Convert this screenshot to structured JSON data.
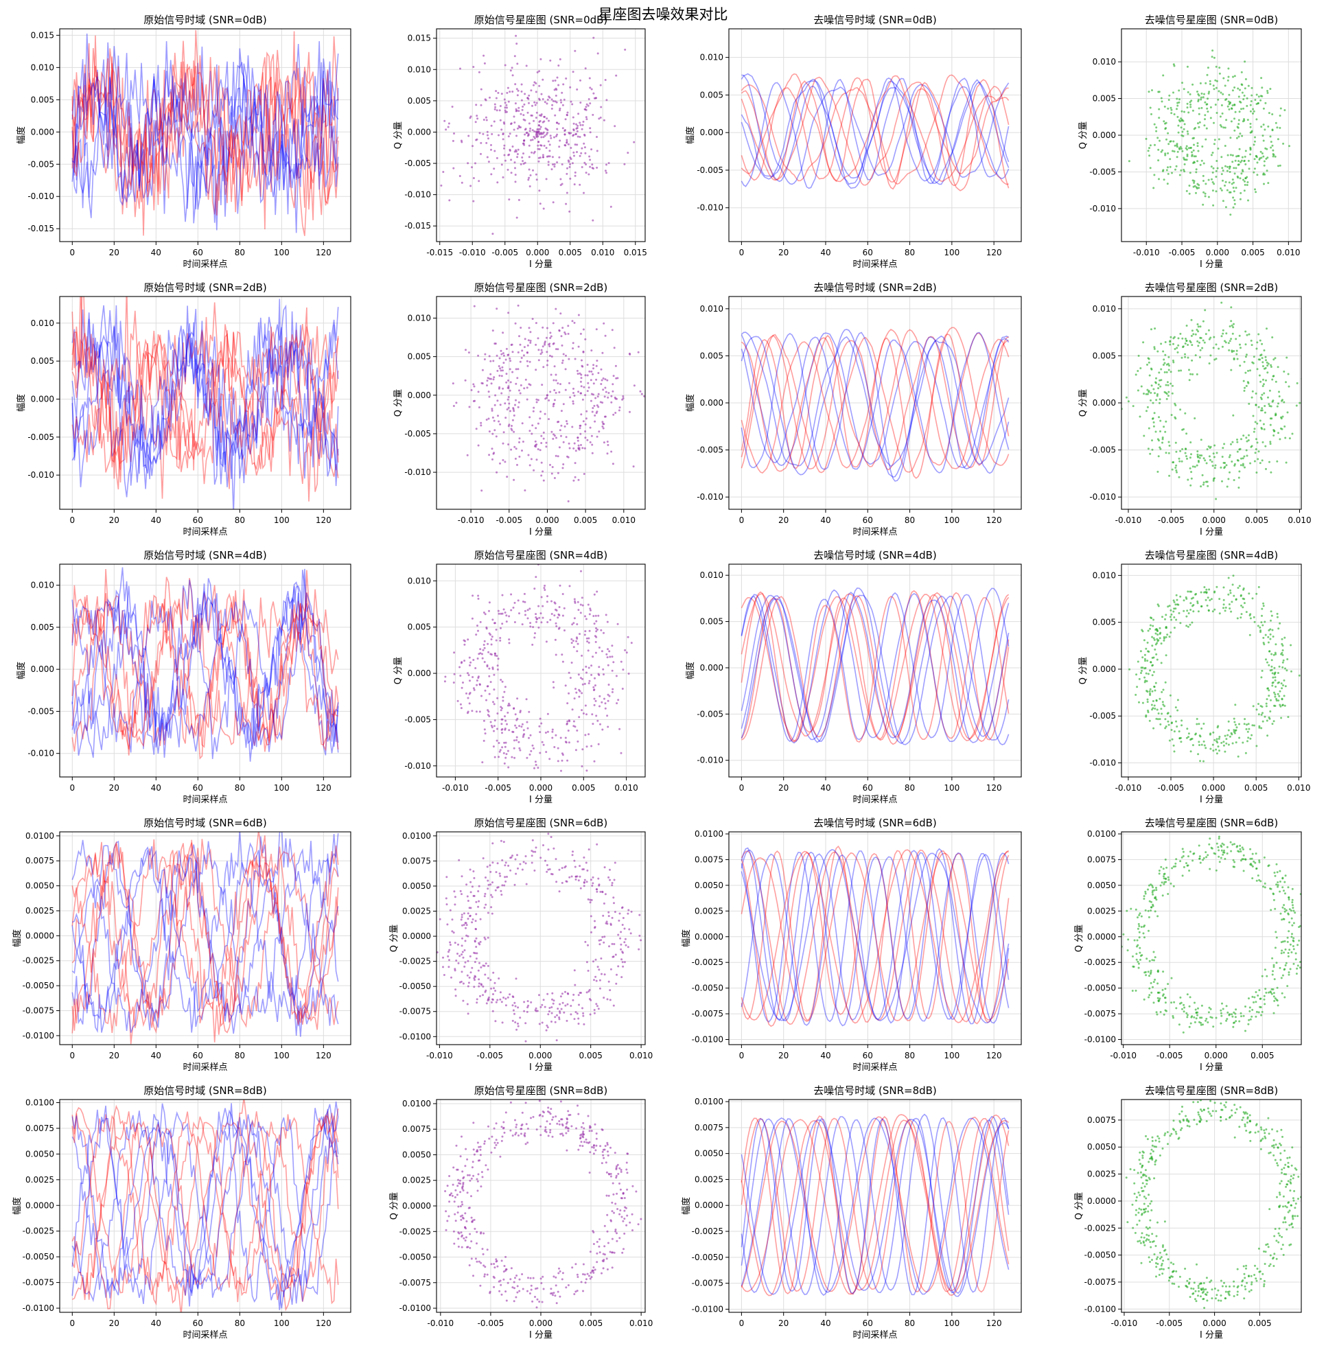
{
  "figure": {
    "suptitle": "星座图去噪效果对比",
    "colors": {
      "red_trace": "#ff0000",
      "blue_trace": "#0000ff",
      "raw_scatter": "#9933aa",
      "denoised_scatter": "#22aa22",
      "grid": "#dddddd"
    }
  },
  "chart_data": [
    {
      "type": "line",
      "title": "原始信号时域 (SNR=0dB)",
      "xlabel": "时间采样点",
      "ylabel": "幅度",
      "xlim": [
        -6,
        133
      ],
      "ylim": [
        -0.017,
        0.016
      ],
      "xticks": [
        0,
        20,
        40,
        60,
        80,
        100,
        120
      ],
      "yticks": [
        -0.015,
        -0.01,
        -0.005,
        0.0,
        0.005,
        0.01,
        0.015
      ],
      "ytick_decimals": 3,
      "grid": true,
      "kind": "time",
      "snr_db": 0,
      "denoised": false,
      "amplitude": 0.0065,
      "noise": 0.004,
      "series_colors": [
        "red",
        "blue"
      ],
      "n_traces": 10,
      "n_samples": 128
    },
    {
      "type": "scatter",
      "title": "原始信号星座图 (SNR=0dB)",
      "xlabel": "I 分量",
      "ylabel": "Q 分量",
      "xlim": [
        -0.0155,
        0.0165
      ],
      "ylim": [
        -0.0175,
        0.0165
      ],
      "xticks": [
        -0.015,
        -0.01,
        -0.005,
        0.0,
        0.005,
        0.01,
        0.015
      ],
      "yticks": [
        -0.015,
        -0.01,
        -0.005,
        0.0,
        0.005,
        0.01,
        0.015
      ],
      "ytick_decimals": 3,
      "grid": true,
      "kind": "constellation",
      "snr_db": 0,
      "denoised": false,
      "radius": 0.0065,
      "noise": 0.004,
      "n_points": 500
    },
    {
      "type": "line",
      "title": "去噪信号时域 (SNR=0dB)",
      "xlabel": "时间采样点",
      "ylabel": "幅度",
      "xlim": [
        -6,
        133
      ],
      "ylim": [
        -0.0145,
        0.0138
      ],
      "xticks": [
        0,
        20,
        40,
        60,
        80,
        100,
        120
      ],
      "yticks": [
        -0.01,
        -0.005,
        0.0,
        0.005,
        0.01
      ],
      "ytick_decimals": 3,
      "grid": true,
      "kind": "time",
      "snr_db": 0,
      "denoised": true,
      "amplitude": 0.0065,
      "noise": 0.0018,
      "series_colors": [
        "red",
        "blue"
      ],
      "n_traces": 10,
      "n_samples": 128
    },
    {
      "type": "scatter",
      "title": "去噪信号星座图 (SNR=0dB)",
      "xlabel": "I 分量",
      "ylabel": "Q 分量",
      "xlim": [
        -0.0135,
        0.0118
      ],
      "ylim": [
        -0.0145,
        0.0145
      ],
      "xticks": [
        -0.01,
        -0.005,
        0.0,
        0.005,
        0.01
      ],
      "yticks": [
        -0.01,
        -0.005,
        0.0,
        0.005,
        0.01
      ],
      "ytick_decimals": 3,
      "grid": true,
      "kind": "constellation",
      "snr_db": 0,
      "denoised": true,
      "radius": 0.0065,
      "noise": 0.0022,
      "n_points": 500
    },
    {
      "type": "line",
      "title": "原始信号时域 (SNR=2dB)",
      "xlabel": "时间采样点",
      "ylabel": "幅度",
      "xlim": [
        -6,
        133
      ],
      "ylim": [
        -0.0145,
        0.0135
      ],
      "xticks": [
        0,
        20,
        40,
        60,
        80,
        100,
        120
      ],
      "yticks": [
        -0.01,
        -0.005,
        0.0,
        0.005,
        0.01
      ],
      "ytick_decimals": 3,
      "grid": true,
      "kind": "time",
      "snr_db": 2,
      "denoised": false,
      "amplitude": 0.007,
      "noise": 0.0028,
      "series_colors": [
        "red",
        "blue"
      ],
      "n_traces": 10,
      "n_samples": 128
    },
    {
      "type": "scatter",
      "title": "原始信号星座图 (SNR=2dB)",
      "xlabel": "I 分量",
      "ylabel": "Q 分量",
      "xlim": [
        -0.0145,
        0.0128
      ],
      "ylim": [
        -0.0148,
        0.0128
      ],
      "xticks": [
        -0.01,
        -0.005,
        0.0,
        0.005,
        0.01
      ],
      "yticks": [
        -0.01,
        -0.005,
        0.0,
        0.005,
        0.01
      ],
      "ytick_decimals": 3,
      "grid": true,
      "kind": "constellation",
      "snr_db": 2,
      "denoised": false,
      "radius": 0.007,
      "noise": 0.0028,
      "n_points": 500
    },
    {
      "type": "line",
      "title": "去噪信号时域 (SNR=2dB)",
      "xlabel": "时间采样点",
      "ylabel": "幅度",
      "xlim": [
        -6,
        133
      ],
      "ylim": [
        -0.0113,
        0.0113
      ],
      "xticks": [
        0,
        20,
        40,
        60,
        80,
        100,
        120
      ],
      "yticks": [
        -0.01,
        -0.005,
        0.0,
        0.005,
        0.01
      ],
      "ytick_decimals": 3,
      "grid": true,
      "kind": "time",
      "snr_db": 2,
      "denoised": true,
      "amplitude": 0.007,
      "noise": 0.0012,
      "series_colors": [
        "red",
        "blue"
      ],
      "n_traces": 10,
      "n_samples": 128
    },
    {
      "type": "scatter",
      "title": "去噪信号星座图 (SNR=2dB)",
      "xlabel": "I 分量",
      "ylabel": "Q 分量",
      "xlim": [
        -0.0108,
        0.0102
      ],
      "ylim": [
        -0.0113,
        0.0113
      ],
      "xticks": [
        -0.01,
        -0.005,
        0.0,
        0.005,
        0.01
      ],
      "yticks": [
        -0.01,
        -0.005,
        0.0,
        0.005,
        0.01
      ],
      "ytick_decimals": 3,
      "grid": true,
      "kind": "constellation",
      "snr_db": 2,
      "denoised": true,
      "radius": 0.007,
      "noise": 0.0015,
      "n_points": 500
    },
    {
      "type": "line",
      "title": "原始信号时域 (SNR=4dB)",
      "xlabel": "时间采样点",
      "ylabel": "幅度",
      "xlim": [
        -6,
        133
      ],
      "ylim": [
        -0.0128,
        0.0125
      ],
      "xticks": [
        0,
        20,
        40,
        60,
        80,
        100,
        120
      ],
      "yticks": [
        -0.01,
        -0.005,
        0.0,
        0.005,
        0.01
      ],
      "ytick_decimals": 3,
      "grid": true,
      "kind": "time",
      "snr_db": 4,
      "denoised": false,
      "amplitude": 0.0075,
      "noise": 0.0018,
      "series_colors": [
        "red",
        "blue"
      ],
      "n_traces": 10,
      "n_samples": 128
    },
    {
      "type": "scatter",
      "title": "原始信号星座图 (SNR=4dB)",
      "xlabel": "I 分量",
      "ylabel": "Q 分量",
      "xlim": [
        -0.0122,
        0.0122
      ],
      "ylim": [
        -0.0112,
        0.0118
      ],
      "xticks": [
        -0.01,
        -0.005,
        0.0,
        0.005,
        0.01
      ],
      "yticks": [
        -0.01,
        -0.005,
        0.0,
        0.005,
        0.01
      ],
      "ytick_decimals": 3,
      "grid": true,
      "kind": "constellation",
      "snr_db": 4,
      "denoised": false,
      "radius": 0.0075,
      "noise": 0.0018,
      "n_points": 500
    },
    {
      "type": "line",
      "title": "去噪信号时域 (SNR=4dB)",
      "xlabel": "时间采样点",
      "ylabel": "幅度",
      "xlim": [
        -6,
        133
      ],
      "ylim": [
        -0.0118,
        0.0112
      ],
      "xticks": [
        0,
        20,
        40,
        60,
        80,
        100,
        120
      ],
      "yticks": [
        -0.01,
        -0.005,
        0.0,
        0.005,
        0.01
      ],
      "ytick_decimals": 3,
      "grid": true,
      "kind": "time",
      "snr_db": 4,
      "denoised": true,
      "amplitude": 0.0078,
      "noise": 0.0008,
      "series_colors": [
        "red",
        "blue"
      ],
      "n_traces": 10,
      "n_samples": 128
    },
    {
      "type": "scatter",
      "title": "去噪信号星座图 (SNR=4dB)",
      "xlabel": "I 分量",
      "ylabel": "Q 分量",
      "xlim": [
        -0.0108,
        0.0103
      ],
      "ylim": [
        -0.0115,
        0.0112
      ],
      "xticks": [
        -0.01,
        -0.005,
        0.0,
        0.005,
        0.01
      ],
      "yticks": [
        -0.01,
        -0.005,
        0.0,
        0.005,
        0.01
      ],
      "ytick_decimals": 3,
      "grid": true,
      "kind": "constellation",
      "snr_db": 4,
      "denoised": true,
      "radius": 0.0078,
      "noise": 0.001,
      "n_points": 500
    },
    {
      "type": "line",
      "title": "原始信号时域 (SNR=6dB)",
      "xlabel": "时间采样点",
      "ylabel": "幅度",
      "xlim": [
        -6,
        133
      ],
      "ylim": [
        -0.0109,
        0.0104
      ],
      "xticks": [
        0,
        20,
        40,
        60,
        80,
        100,
        120
      ],
      "yticks": [
        -0.01,
        -0.0075,
        -0.005,
        -0.0025,
        0.0,
        0.0025,
        0.005,
        0.0075,
        0.01
      ],
      "ytick_decimals": 4,
      "grid": true,
      "kind": "time",
      "snr_db": 6,
      "denoised": false,
      "amplitude": 0.0078,
      "noise": 0.0012,
      "series_colors": [
        "red",
        "blue"
      ],
      "n_traces": 10,
      "n_samples": 128
    },
    {
      "type": "scatter",
      "title": "原始信号星座图 (SNR=6dB)",
      "xlabel": "I 分量",
      "ylabel": "Q 分量",
      "xlim": [
        -0.0103,
        0.0104
      ],
      "ylim": [
        -0.0108,
        0.0104
      ],
      "xticks": [
        -0.01,
        -0.005,
        0.0,
        0.005,
        0.01
      ],
      "yticks": [
        -0.01,
        -0.0075,
        -0.005,
        -0.0025,
        0.0,
        0.0025,
        0.005,
        0.0075,
        0.01
      ],
      "ytick_decimals": 4,
      "grid": true,
      "kind": "constellation",
      "snr_db": 6,
      "denoised": false,
      "radius": 0.0078,
      "noise": 0.0012,
      "n_points": 500
    },
    {
      "type": "line",
      "title": "去噪信号时域 (SNR=6dB)",
      "xlabel": "时间采样点",
      "ylabel": "幅度",
      "xlim": [
        -6,
        133
      ],
      "ylim": [
        -0.0105,
        0.0102
      ],
      "xticks": [
        0,
        20,
        40,
        60,
        80,
        100,
        120
      ],
      "yticks": [
        -0.01,
        -0.0075,
        -0.005,
        -0.0025,
        0.0,
        0.0025,
        0.005,
        0.0075,
        0.01
      ],
      "ytick_decimals": 4,
      "grid": true,
      "kind": "time",
      "snr_db": 6,
      "denoised": true,
      "amplitude": 0.0082,
      "noise": 0.0006,
      "series_colors": [
        "red",
        "blue"
      ],
      "n_traces": 10,
      "n_samples": 128
    },
    {
      "type": "scatter",
      "title": "去噪信号星座图 (SNR=6dB)",
      "xlabel": "I 分量",
      "ylabel": "Q 分量",
      "xlim": [
        -0.0102,
        0.0092
      ],
      "ylim": [
        -0.0105,
        0.0102
      ],
      "xticks": [
        -0.01,
        -0.005,
        0.0,
        0.005
      ],
      "yticks": [
        -0.01,
        -0.0075,
        -0.005,
        -0.0025,
        0.0,
        0.0025,
        0.005,
        0.0075,
        0.01
      ],
      "ytick_decimals": 4,
      "grid": true,
      "kind": "constellation",
      "snr_db": 6,
      "denoised": true,
      "radius": 0.0082,
      "noise": 0.0008,
      "n_points": 500
    },
    {
      "type": "line",
      "title": "原始信号时域 (SNR=8dB)",
      "xlabel": "时间采样点",
      "ylabel": "幅度",
      "xlim": [
        -6,
        133
      ],
      "ylim": [
        -0.0104,
        0.0103
      ],
      "xticks": [
        0,
        20,
        40,
        60,
        80,
        100,
        120
      ],
      "yticks": [
        -0.01,
        -0.0075,
        -0.005,
        -0.0025,
        0.0,
        0.0025,
        0.005,
        0.0075,
        0.01
      ],
      "ytick_decimals": 4,
      "grid": true,
      "kind": "time",
      "snr_db": 8,
      "denoised": false,
      "amplitude": 0.0082,
      "noise": 0.0009,
      "series_colors": [
        "red",
        "blue"
      ],
      "n_traces": 10,
      "n_samples": 128
    },
    {
      "type": "scatter",
      "title": "原始信号星座图 (SNR=8dB)",
      "xlabel": "I 分量",
      "ylabel": "Q 分量",
      "xlim": [
        -0.0104,
        0.0104
      ],
      "ylim": [
        -0.0104,
        0.0104
      ],
      "xticks": [
        -0.01,
        -0.005,
        0.0,
        0.005,
        0.01
      ],
      "yticks": [
        -0.01,
        -0.0075,
        -0.005,
        -0.0025,
        0.0,
        0.0025,
        0.005,
        0.0075,
        0.01
      ],
      "ytick_decimals": 4,
      "grid": true,
      "kind": "constellation",
      "snr_db": 8,
      "denoised": false,
      "radius": 0.0082,
      "noise": 0.0009,
      "n_points": 500
    },
    {
      "type": "line",
      "title": "去噪信号时域 (SNR=8dB)",
      "xlabel": "时间采样点",
      "ylabel": "幅度",
      "xlim": [
        -6,
        133
      ],
      "ylim": [
        -0.0103,
        0.0102
      ],
      "xticks": [
        0,
        20,
        40,
        60,
        80,
        100,
        120
      ],
      "yticks": [
        -0.01,
        -0.0075,
        -0.005,
        -0.0025,
        0.0,
        0.0025,
        0.005,
        0.0075,
        0.01
      ],
      "ytick_decimals": 4,
      "grid": true,
      "kind": "time",
      "snr_db": 8,
      "denoised": true,
      "amplitude": 0.0084,
      "noise": 0.0005,
      "series_colors": [
        "red",
        "blue"
      ],
      "n_traces": 10,
      "n_samples": 128
    },
    {
      "type": "scatter",
      "title": "去噪信号星座图 (SNR=8dB)",
      "xlabel": "I 分量",
      "ylabel": "Q 分量",
      "xlim": [
        -0.0103,
        0.0096
      ],
      "ylim": [
        -0.0103,
        0.0094
      ],
      "xticks": [
        -0.01,
        -0.005,
        0.0,
        0.005
      ],
      "yticks": [
        -0.01,
        -0.0075,
        -0.005,
        -0.0025,
        0.0,
        0.0025,
        0.005,
        0.0075
      ],
      "ytick_decimals": 4,
      "grid": true,
      "kind": "constellation",
      "snr_db": 8,
      "denoised": true,
      "radius": 0.0083,
      "noise": 0.0007,
      "n_points": 500
    }
  ]
}
